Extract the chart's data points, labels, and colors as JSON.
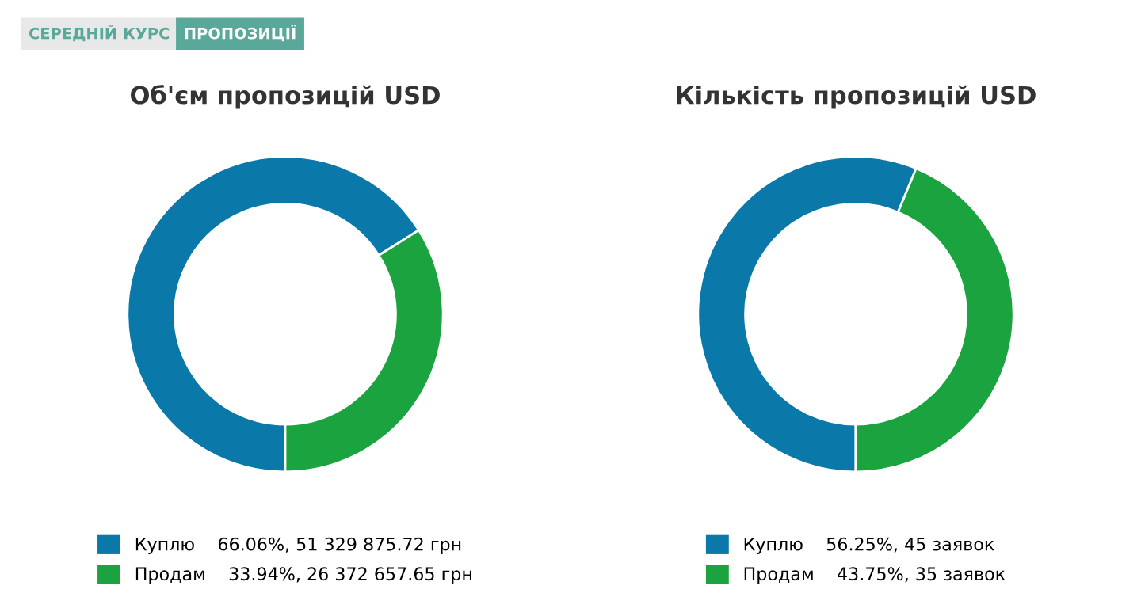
{
  "chart_data": [
    {
      "type": "donut",
      "title": "Об'єм пропозицій USD",
      "annotations": [
        "СЕРЕДНІЙ КУРС",
        "ПРОПОЗИЦІЇ"
      ],
      "categories": [
        "Куплю",
        "Продам"
      ],
      "values": [
        51329875.72,
        26372657.65
      ],
      "colors": [
        "#0a78a8",
        "#1aa33e"
      ],
      "value_labels": [
        "66.06%, 51 329 875.72 грн",
        "33.94%, 26 372 657.65 грн"
      ],
      "legend": "bottom"
    },
    {
      "type": "donut",
      "title": "Кількість пропозицій USD",
      "categories": [
        "Куплю",
        "Продам"
      ],
      "values": [
        45,
        35
      ],
      "colors": [
        "#0a78a8",
        "#1aa33e"
      ],
      "value_labels": [
        "56.25%, 45 заявок",
        "43.75%, 35 заявок"
      ],
      "legend": "bottom"
    }
  ]
}
